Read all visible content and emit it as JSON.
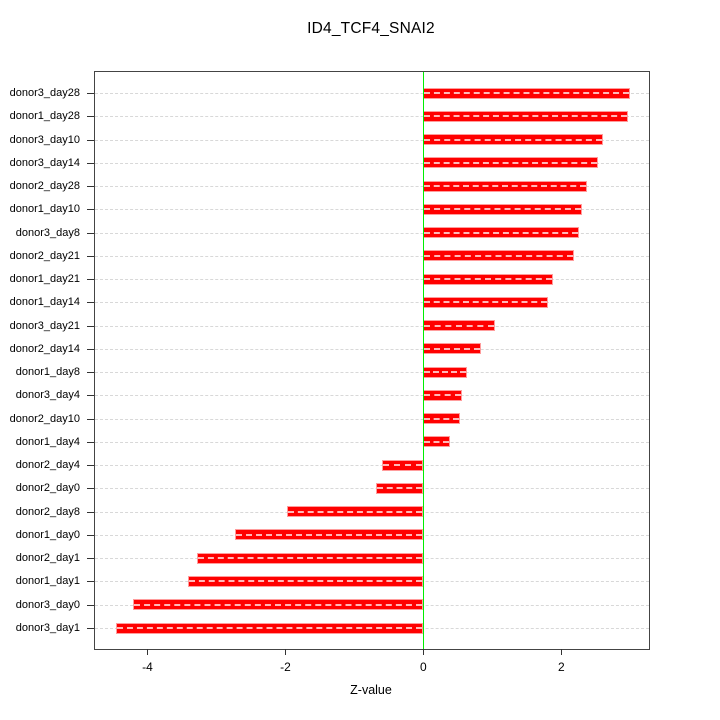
{
  "title": "ID4_TCF4_SNAI2",
  "chart_data": {
    "type": "bar",
    "orientation": "horizontal",
    "title": "ID4_TCF4_SNAI2",
    "xlabel": "Z-value",
    "ylabel": "",
    "categories": [
      "donor3_day28",
      "donor1_day28",
      "donor3_day10",
      "donor3_day14",
      "donor2_day28",
      "donor1_day10",
      "donor3_day8",
      "donor2_day21",
      "donor1_day21",
      "donor1_day14",
      "donor3_day21",
      "donor2_day14",
      "donor1_day8",
      "donor3_day4",
      "donor2_day10",
      "donor1_day4",
      "donor2_day4",
      "donor2_day0",
      "donor2_day8",
      "donor1_day0",
      "donor2_day1",
      "donor1_day1",
      "donor3_day0",
      "donor3_day1"
    ],
    "values": [
      2.99,
      2.96,
      2.61,
      2.53,
      2.37,
      2.3,
      2.26,
      2.18,
      1.88,
      1.8,
      1.04,
      0.84,
      0.63,
      0.56,
      0.53,
      0.39,
      -0.6,
      -0.68,
      -1.97,
      -2.73,
      -3.28,
      -3.41,
      -4.21,
      -4.45
    ],
    "xlim": [
      -4.76,
      3.27
    ],
    "x_ticks": [
      -4,
      -2,
      0,
      2
    ],
    "grid": true,
    "legend": "none",
    "bar_color": "#ff0000",
    "bar_edge_color": "#ff9c9c",
    "zero_line_color": "#00ee00",
    "grid_color": "#d8d8d8",
    "axis_color": "#444444"
  }
}
